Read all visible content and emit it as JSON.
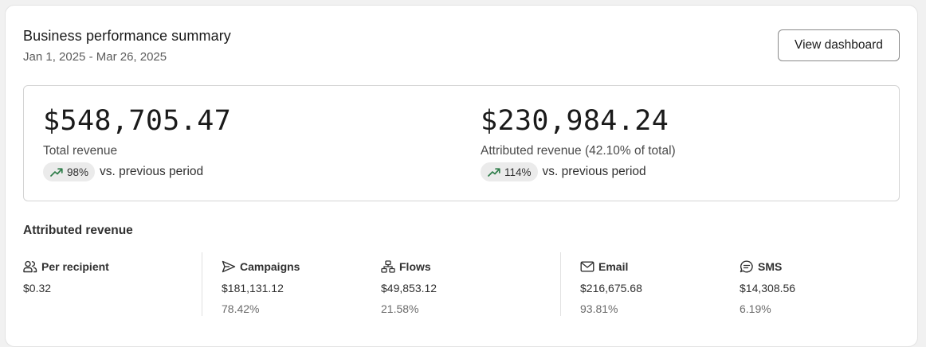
{
  "header": {
    "title": "Business performance summary",
    "date_range": "Jan 1, 2025 - Mar 26, 2025",
    "view_button_label": "View dashboard"
  },
  "metrics": [
    {
      "value": "$548,705.47",
      "label": "Total revenue",
      "change": "98%",
      "comparison": "vs. previous period",
      "trend_icon": "trend-up-icon",
      "trend_color": "#2f7d4a"
    },
    {
      "value": "$230,984.24",
      "label": "Attributed revenue (42.10% of total)",
      "change": "114%",
      "comparison": "vs. previous period",
      "trend_icon": "trend-up-icon",
      "trend_color": "#2f7d4a"
    }
  ],
  "attributed": {
    "title": "Attributed revenue",
    "items": [
      {
        "key": "per-recipient",
        "icon": "users-icon",
        "label": "Per recipient",
        "value": "$0.32",
        "percent": ""
      },
      {
        "key": "campaigns",
        "icon": "send-icon",
        "label": "Campaigns",
        "value": "$181,131.12",
        "percent": "78.42%"
      },
      {
        "key": "flows",
        "icon": "flow-icon",
        "label": "Flows",
        "value": "$49,853.12",
        "percent": "21.58%"
      },
      {
        "key": "email",
        "icon": "mail-icon",
        "label": "Email",
        "value": "$216,675.68",
        "percent": "93.81%"
      },
      {
        "key": "sms",
        "icon": "sms-icon",
        "label": "SMS",
        "value": "$14,308.56",
        "percent": "6.19%"
      }
    ]
  }
}
